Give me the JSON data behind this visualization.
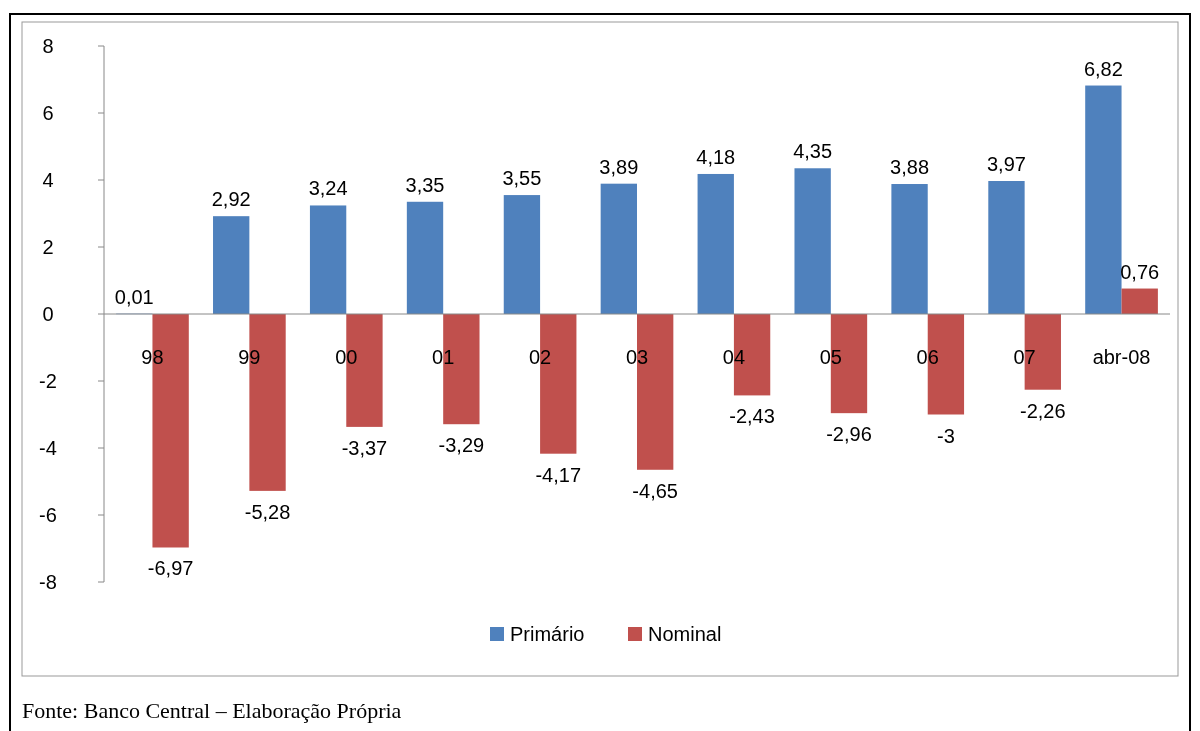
{
  "chart_data": {
    "type": "bar",
    "categories": [
      "98",
      "99",
      "00",
      "01",
      "02",
      "03",
      "04",
      "05",
      "06",
      "07",
      "abr-08"
    ],
    "series": [
      {
        "name": "Primário",
        "color": "#4f81bd",
        "values": [
          0.01,
          2.92,
          3.24,
          3.35,
          3.55,
          3.89,
          4.18,
          4.35,
          3.88,
          3.97,
          6.82
        ],
        "value_labels": [
          "0,01",
          "2,92",
          "3,24",
          "3,35",
          "3,55",
          "3,89",
          "4,18",
          "4,35",
          "3,88",
          "3,97",
          "6,82"
        ]
      },
      {
        "name": "Nominal",
        "color": "#c0504d",
        "values": [
          -6.97,
          -5.28,
          -3.37,
          -3.29,
          -4.17,
          -4.65,
          -2.43,
          -2.96,
          -3,
          -2.26,
          0.76
        ],
        "value_labels": [
          "-6,97",
          "-5,28",
          "-3,37",
          "-3,29",
          "-4,17",
          "-4,65",
          "-2,43",
          "-2,96",
          "-3",
          "-2,26",
          "0,76"
        ]
      }
    ],
    "ylim": [
      -8,
      8
    ],
    "yticks": [
      -8,
      -6,
      -4,
      -2,
      0,
      2,
      4,
      6,
      8
    ],
    "grid": false,
    "legend": "bottom",
    "annotations": [
      "Fonte: Banco Central – Elaboração Própria"
    ]
  }
}
